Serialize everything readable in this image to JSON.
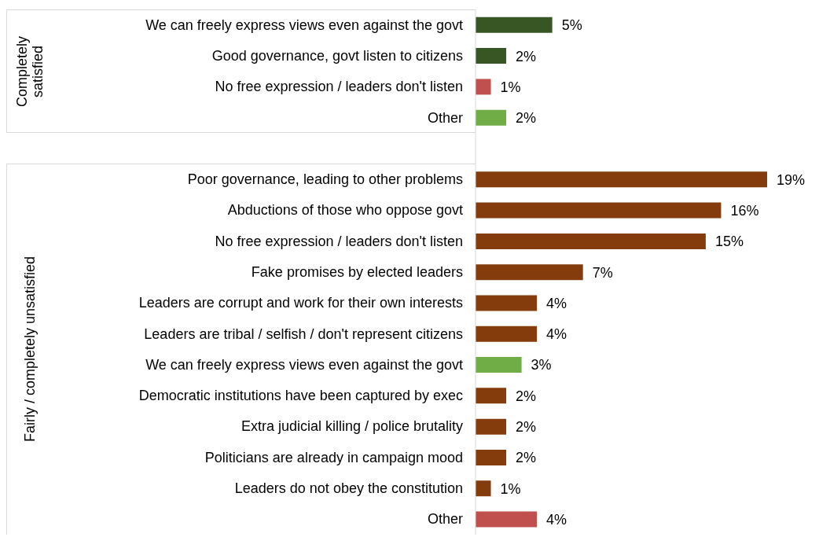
{
  "chart_data": {
    "type": "bar",
    "orientation": "horizontal",
    "categories": [
      "We can freely express views even against the govt",
      "Good governance, govt listen to citizens",
      "No free expression / leaders don't listen",
      "Other",
      null,
      "Poor governance, leading to other problems",
      "Abductions of those who oppose govt",
      "No free expression / leaders don't listen",
      "Fake promises by elected leaders",
      "Leaders are corrupt and work for their own interests",
      "Leaders are tribal / selfish / don't represent citizens",
      "We can freely express views even against the govt",
      "Democratic institutions have been captured by exec",
      "Extra judicial killing / police brutality",
      "Politicians are already in campaign mood",
      "Leaders do not obey the constitution",
      "Other"
    ],
    "values": [
      5,
      2,
      1,
      2,
      null,
      19,
      16,
      15,
      7,
      4,
      4,
      3,
      2,
      2,
      2,
      1,
      4
    ],
    "value_labels": [
      "5%",
      "2%",
      "1%",
      "2%",
      null,
      "19%",
      "16%",
      "15%",
      "7%",
      "4%",
      "4%",
      "3%",
      "2%",
      "2%",
      "2%",
      "1%",
      "4%"
    ],
    "colors": [
      "#375623",
      "#375623",
      "#c0504d",
      "#70ad47",
      null,
      "#843c0c",
      "#843c0c",
      "#843c0c",
      "#843c0c",
      "#843c0c",
      "#843c0c",
      "#70ad47",
      "#843c0c",
      "#843c0c",
      "#843c0c",
      "#843c0c",
      "#c0504d"
    ],
    "annotations": [
      "Completely satisfied",
      "Fairly / completely unsatisfied"
    ],
    "tick_labels": false
  }
}
